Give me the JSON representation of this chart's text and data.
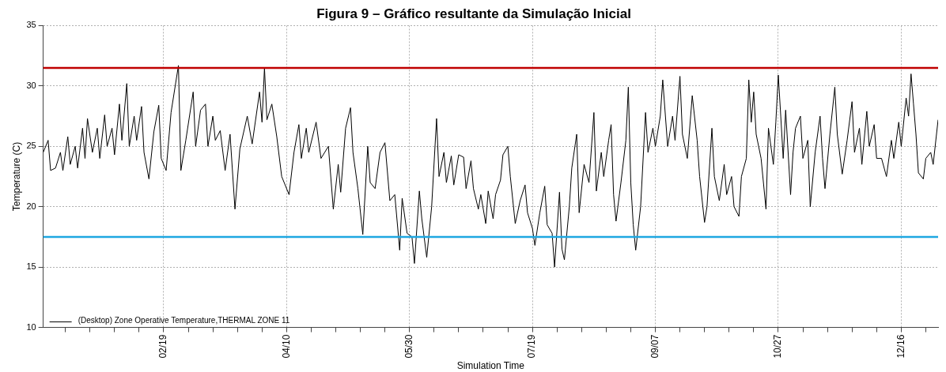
{
  "chart_data": {
    "type": "line",
    "title": "Figura 9 – Gráfico resultante da Simulação Inicial",
    "xlabel": "Simulation Time",
    "ylabel": "Temperature (C)",
    "xlim": [
      "--01-01",
      "--12-31"
    ],
    "xticks": [
      {
        "value": "--01-10",
        "label": null
      },
      {
        "value": "--01-20",
        "label": null
      },
      {
        "value": "--01-30",
        "label": null
      },
      {
        "value": "--02-09",
        "label": null
      },
      {
        "value": "--02-19",
        "label": "02/19"
      },
      {
        "value": "--03-01",
        "label": null
      },
      {
        "value": "--03-11",
        "label": null
      },
      {
        "value": "--03-21",
        "label": null
      },
      {
        "value": "--03-31",
        "label": null
      },
      {
        "value": "--04-10",
        "label": "04/10"
      },
      {
        "value": "--04-20",
        "label": null
      },
      {
        "value": "--04-30",
        "label": null
      },
      {
        "value": "--05-10",
        "label": null
      },
      {
        "value": "--05-20",
        "label": null
      },
      {
        "value": "--05-30",
        "label": "05/30"
      },
      {
        "value": "--06-09",
        "label": null
      },
      {
        "value": "--06-19",
        "label": null
      },
      {
        "value": "--06-29",
        "label": null
      },
      {
        "value": "--07-09",
        "label": null
      },
      {
        "value": "--07-19",
        "label": "07/19"
      },
      {
        "value": "--07-29",
        "label": null
      },
      {
        "value": "--08-08",
        "label": null
      },
      {
        "value": "--08-18",
        "label": null
      },
      {
        "value": "--08-28",
        "label": null
      },
      {
        "value": "--09-07",
        "label": "09/07"
      },
      {
        "value": "--09-17",
        "label": null
      },
      {
        "value": "--09-27",
        "label": null
      },
      {
        "value": "--10-07",
        "label": null
      },
      {
        "value": "--10-17",
        "label": null
      },
      {
        "value": "--10-27",
        "label": "10/27"
      },
      {
        "value": "--11-06",
        "label": null
      },
      {
        "value": "--11-16",
        "label": null
      },
      {
        "value": "--11-26",
        "label": null
      },
      {
        "value": "--12-06",
        "label": null
      },
      {
        "value": "--12-16",
        "label": "12/16"
      },
      {
        "value": "--12-26",
        "label": null
      }
    ],
    "ylim": [
      10,
      35
    ],
    "yticks": [
      10,
      15,
      20,
      25,
      30,
      35
    ],
    "grid": true,
    "legend": "bottom left",
    "marker": "none",
    "line_style": "solid",
    "ref_lines": [
      {
        "axis": "y",
        "value": 31.5,
        "color": "#c00000"
      },
      {
        "axis": "y",
        "value": 17.5,
        "color": "#1ea7e1"
      }
    ],
    "series": [
      {
        "name": "(Desktop) Zone Operative Temperature,THERMAL ZONE 11",
        "color": "#000000",
        "x": [
          "--01-01",
          "--01-03",
          "--01-04",
          "--01-06",
          "--01-08",
          "--01-09",
          "--01-11",
          "--01-12",
          "--01-14",
          "--01-15",
          "--01-17",
          "--01-18",
          "--01-19",
          "--01-21",
          "--01-23",
          "--01-24",
          "--01-26",
          "--01-27",
          "--01-29",
          "--01-30",
          "--02-01",
          "--02-02",
          "--02-04",
          "--02-05",
          "--02-07",
          "--02-08",
          "--02-10",
          "--02-11",
          "--02-13",
          "--02-15",
          "--02-17",
          "--02-18",
          "--02-20",
          "--02-22",
          "--02-25",
          "--02-26",
          "--02-28",
          "--03-03",
          "--03-04",
          "--03-06",
          "--03-08",
          "--03-09",
          "--03-11",
          "--03-12",
          "--03-14",
          "--03-16",
          "--03-18",
          "--03-20",
          "--03-22",
          "--03-25",
          "--03-27",
          "--03-30",
          "--03-31",
          "--04-01",
          "--04-02",
          "--04-04",
          "--04-06",
          "--04-08",
          "--04-11",
          "--04-13",
          "--04-15",
          "--04-16",
          "--04-18",
          "--04-19",
          "--04-22",
          "--04-24",
          "--04-27",
          "--04-29",
          "--05-01",
          "--05-02",
          "--05-04",
          "--05-06",
          "--05-07",
          "--05-09",
          "--05-11",
          "--05-13",
          "--05-14",
          "--05-16",
          "--05-18",
          "--05-20",
          "--05-22",
          "--05-24",
          "--05-26",
          "--05-27",
          "--05-29",
          "--05-31",
          "--06-01",
          "--06-03",
          "--06-04",
          "--06-06",
          "--06-08",
          "--06-10",
          "--06-11",
          "--06-13",
          "--06-14",
          "--06-16",
          "--06-17",
          "--06-19",
          "--06-21",
          "--06-22",
          "--06-24",
          "--06-25",
          "--06-27",
          "--06-28",
          "--06-30",
          "--07-01",
          "--07-03",
          "--07-04",
          "--07-06",
          "--07-07",
          "--07-09",
          "--07-10",
          "--07-12",
          "--07-14",
          "--07-16",
          "--07-17",
          "--07-19",
          "--07-20",
          "--07-22",
          "--07-24",
          "--07-25",
          "--07-27",
          "--07-28",
          "--07-30",
          "--07-31",
          "--08-01",
          "--08-03",
          "--08-04",
          "--08-06",
          "--08-07",
          "--08-09",
          "--08-11",
          "--08-13",
          "--08-14",
          "--08-16",
          "--08-17",
          "--08-19",
          "--08-20",
          "--08-21",
          "--08-22",
          "--08-24",
          "--08-26",
          "--08-27",
          "--08-28",
          "--08-29",
          "--08-30",
          "--09-01",
          "--09-03",
          "--09-04",
          "--09-06",
          "--09-07",
          "--09-09",
          "--09-10",
          "--09-12",
          "--09-14",
          "--09-15",
          "--09-17",
          "--09-18",
          "--09-20",
          "--09-22",
          "--09-24",
          "--09-25",
          "--09-27",
          "--09-28",
          "--09-30",
          "--10-01",
          "--10-03",
          "--10-05",
          "--10-06",
          "--10-08",
          "--10-09",
          "--10-11",
          "--10-12",
          "--10-14",
          "--10-15",
          "--10-16",
          "--10-17",
          "--10-18",
          "--10-20",
          "--10-22",
          "--10-23",
          "--10-25",
          "--10-26",
          "--10-27",
          "--10-28",
          "--10-29",
          "--10-30",
          "--11-01",
          "--11-02",
          "--11-03",
          "--11-05",
          "--11-06",
          "--11-08",
          "--11-09",
          "--11-11",
          "--11-13",
          "--11-14",
          "--11-15",
          "--11-17",
          "--11-19",
          "--11-20",
          "--11-22",
          "--11-24",
          "--11-26",
          "--11-27",
          "--11-29",
          "--11-30",
          "--12-02",
          "--12-03",
          "--12-05",
          "--12-06",
          "--12-08",
          "--12-10",
          "--12-12",
          "--12-13",
          "--12-15",
          "--12-16",
          "--12-18",
          "--12-19",
          "--12-20",
          "--12-21",
          "--12-22",
          "--12-23",
          "--12-25",
          "--12-26",
          "--12-28",
          "--12-29",
          "--12-31"
        ],
        "values": [
          24.5,
          25.5,
          23,
          23.2,
          24.5,
          23,
          25.8,
          23.5,
          25,
          23.2,
          26.5,
          24,
          27.3,
          24.5,
          26.5,
          24,
          27.6,
          25,
          26.5,
          24.3,
          28.5,
          25.5,
          30.2,
          25,
          27.5,
          25.5,
          28.3,
          24.5,
          22.3,
          26.2,
          28.4,
          24,
          23,
          27.8,
          31.7,
          23,
          25.5,
          29.5,
          25,
          28,
          28.5,
          25,
          27.5,
          25.5,
          26.3,
          23,
          26,
          19.8,
          24.8,
          27.5,
          25.2,
          29.5,
          27,
          31.5,
          27.2,
          28.5,
          25.8,
          22.5,
          21,
          24.5,
          26.8,
          24,
          26.5,
          24.5,
          27,
          24,
          25,
          19.8,
          23.5,
          21.2,
          26.5,
          28.2,
          24.5,
          21.5,
          17.7,
          25,
          22,
          21.5,
          24.5,
          25.3,
          20.5,
          21,
          16.4,
          20.7,
          17.8,
          17.5,
          15.3,
          21.3,
          19,
          15.8,
          20,
          27.3,
          22.5,
          24.5,
          22,
          24.2,
          21.8,
          24.3,
          24.1,
          21.5,
          23.8,
          21.5,
          19.8,
          21,
          18.6,
          21.3,
          19,
          21,
          22.2,
          24.3,
          25,
          22.5,
          18.6,
          20.5,
          21.8,
          19.5,
          18.2,
          16.8,
          19.5,
          21.7,
          18.5,
          17.8,
          15,
          21.2,
          16.5,
          15.6,
          20,
          23.2,
          26,
          19.5,
          23.5,
          22,
          27.8,
          21.3,
          24.5,
          22.5,
          25.5,
          26.8,
          21,
          18.8,
          22,
          25.5,
          29.9,
          22,
          18.5,
          16.4,
          20,
          27.8,
          24.5,
          26.5,
          25,
          27.5,
          30.5,
          25,
          27.5,
          25.5,
          30.8,
          26,
          24,
          29.2,
          25.5,
          22.5,
          18.7,
          20,
          26.5,
          22.5,
          20.5,
          23.5,
          21,
          22.5,
          20,
          19.2,
          22.5,
          24,
          30.5,
          27,
          29.5,
          26,
          24,
          19.8,
          26.5,
          23.5,
          27,
          30.9,
          27.5,
          24,
          28,
          21,
          24.5,
          26.5,
          27.5,
          24,
          25.5,
          20,
          24.5,
          27.5,
          24,
          21.5,
          26,
          29.9,
          26,
          22.7,
          25.5,
          28.7,
          24.5,
          26.5,
          23.5,
          27.9,
          25,
          26.8,
          24,
          24,
          22.5,
          25.5,
          24,
          27,
          25,
          29,
          27.5,
          31,
          28.5,
          26,
          22.8,
          22.3,
          24,
          24.5,
          23.5,
          27.2
        ]
      }
    ]
  }
}
